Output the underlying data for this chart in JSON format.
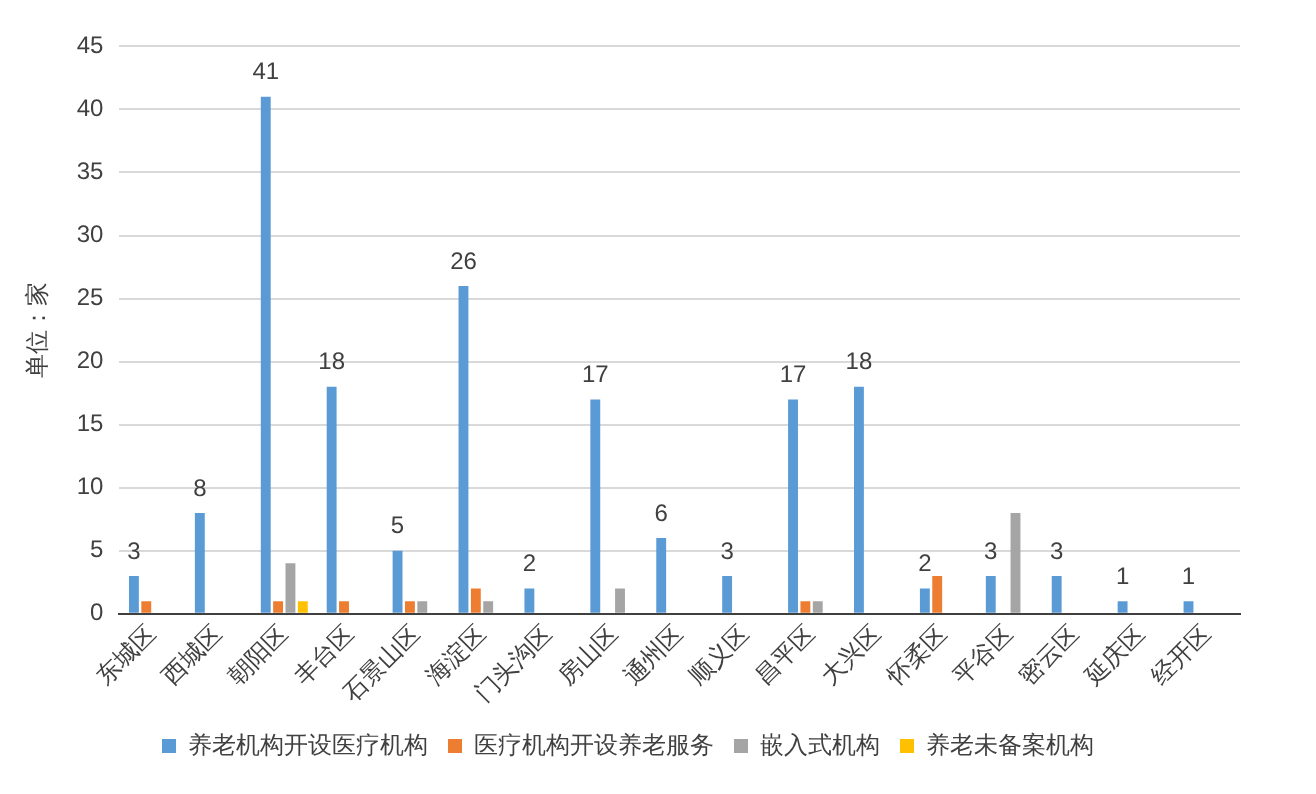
{
  "chart_data": {
    "type": "bar",
    "ylabel": "单位：家",
    "categories": [
      "东城区",
      "西城区",
      "朝阳区",
      "丰台区",
      "石景山区",
      "海淀区",
      "门头沟区",
      "房山区",
      "通州区",
      "顺义区",
      "昌平区",
      "大兴区",
      "怀柔区",
      "平谷区",
      "密云区",
      "延庆区",
      "经开区"
    ],
    "series": [
      {
        "name": "养老机构开设医疗机构",
        "color": "#5b9bd5",
        "values": [
          3,
          8,
          41,
          18,
          5,
          26,
          2,
          17,
          6,
          3,
          17,
          18,
          2,
          3,
          3,
          1,
          1
        ],
        "value_labels": [
          "3",
          "8",
          "41",
          "18",
          "5",
          "26",
          "2",
          "17",
          "6",
          "3",
          "17",
          "18",
          "2",
          "3",
          "3",
          "1",
          "1"
        ]
      },
      {
        "name": "医疗机构开设养老服务",
        "color": "#ed7d31",
        "values": [
          1,
          null,
          1,
          1,
          1,
          2,
          null,
          null,
          null,
          null,
          1,
          null,
          3,
          null,
          null,
          null,
          null
        ]
      },
      {
        "name": "嵌入式机构",
        "color": "#a5a5a5",
        "values": [
          null,
          null,
          4,
          null,
          1,
          1,
          null,
          2,
          null,
          null,
          1,
          null,
          null,
          8,
          null,
          null,
          null
        ]
      },
      {
        "name": "养老未备案机构",
        "color": "#ffc000",
        "values": [
          null,
          null,
          1,
          null,
          null,
          null,
          null,
          null,
          null,
          null,
          null,
          null,
          null,
          null,
          null,
          null,
          null
        ]
      }
    ],
    "ylim": [
      0,
      45
    ],
    "yticks": [
      0,
      5,
      10,
      15,
      20,
      25,
      30,
      35,
      40,
      45
    ],
    "grid": "y",
    "legend": "bottom"
  }
}
